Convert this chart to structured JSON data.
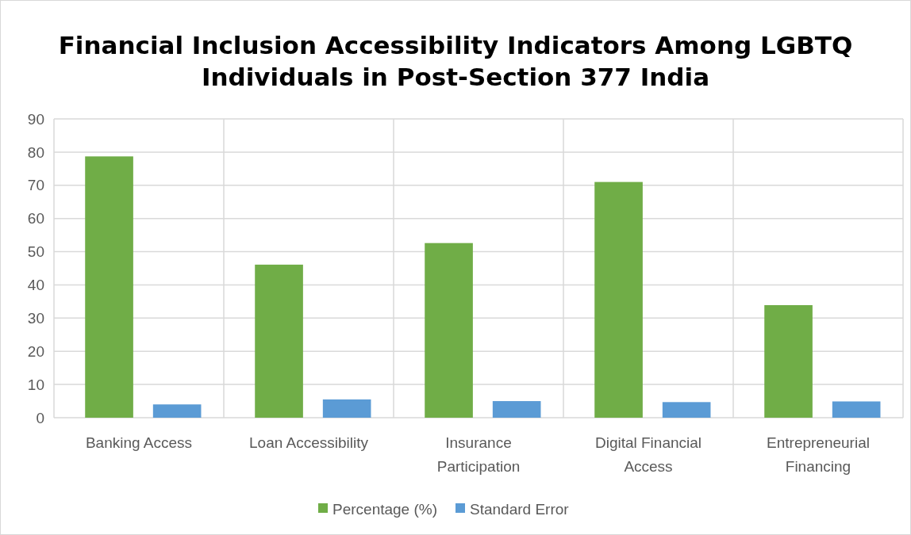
{
  "chart_data": {
    "type": "bar",
    "title": "Financial Inclusion Accessibility Indicators Among LGBTQ Individuals in Post-Section 377 India",
    "categories": [
      "Banking Access",
      "Loan Accessibility",
      "Insurance Participation",
      "Digital Financial Access",
      "Entrepreneurial Financing"
    ],
    "series": [
      {
        "name": "Percentage (%)",
        "color": "#70ad47",
        "values": [
          78.7,
          46.1,
          52.6,
          71.0,
          33.9
        ]
      },
      {
        "name": "Standard Error",
        "color": "#5b9bd5",
        "values": [
          4.0,
          5.5,
          5.0,
          4.7,
          4.9
        ]
      }
    ],
    "ylim": [
      0,
      90
    ],
    "yticks": [
      0,
      10,
      20,
      30,
      40,
      50,
      60,
      70,
      80,
      90
    ],
    "grid": true,
    "legend": "bottom"
  }
}
